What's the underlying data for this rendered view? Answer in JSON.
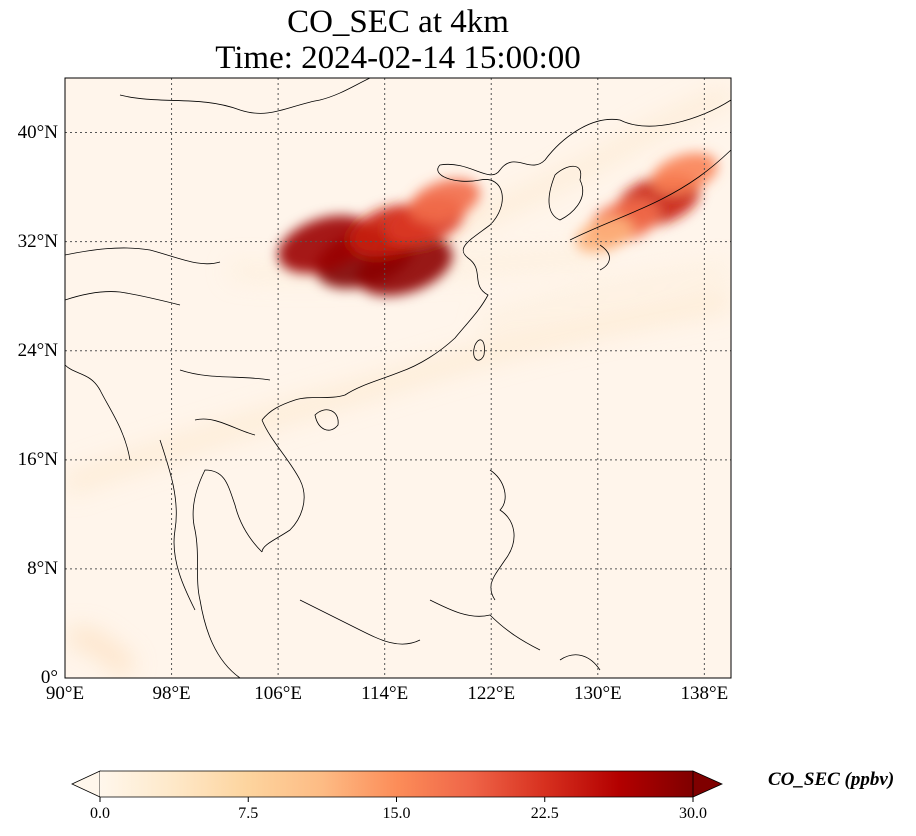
{
  "title": {
    "line1": "CO_SEC at 4km",
    "line2": "Time: 2024-02-14 15:00:00"
  },
  "map": {
    "extent_lon": [
      90,
      140
    ],
    "extent_lat": [
      0,
      44
    ],
    "lat_ticks": [
      {
        "value": 40,
        "label": "40°N"
      },
      {
        "value": 32,
        "label": "32°N"
      },
      {
        "value": 24,
        "label": "24°N"
      },
      {
        "value": 16,
        "label": "16°N"
      },
      {
        "value": 8,
        "label": "8°N"
      },
      {
        "value": 0,
        "label": "0°"
      }
    ],
    "lon_ticks": [
      {
        "value": 90,
        "label": "90°E"
      },
      {
        "value": 98,
        "label": "98°E"
      },
      {
        "value": 106,
        "label": "106°E"
      },
      {
        "value": 114,
        "label": "114°E"
      },
      {
        "value": 122,
        "label": "122°E"
      },
      {
        "value": 130,
        "label": "130°E"
      },
      {
        "value": 138,
        "label": "138°E"
      }
    ],
    "gridlines": true,
    "background_color": "#fff5eb",
    "plumes": [
      {
        "region": "central-east China",
        "lon": 112.5,
        "lat": 30.8,
        "value": 30
      },
      {
        "region": "central-east China",
        "lon": 109.5,
        "lat": 31.8,
        "value": 28
      },
      {
        "region": "central-east China",
        "lon": 115.5,
        "lat": 30.2,
        "value": 29
      },
      {
        "region": "central-east China",
        "lon": 114.5,
        "lat": 32.8,
        "value": 24
      },
      {
        "region": "central-east China",
        "lon": 117,
        "lat": 33.5,
        "value": 22
      },
      {
        "region": "central-east China",
        "lon": 118.5,
        "lat": 35,
        "value": 18
      },
      {
        "region": "southern Japan",
        "lon": 134.5,
        "lat": 35,
        "value": 24
      },
      {
        "region": "southern Japan",
        "lon": 132,
        "lat": 33.5,
        "value": 18
      },
      {
        "region": "southern Japan",
        "lon": 136.5,
        "lat": 37,
        "value": 16
      },
      {
        "region": "southern Japan",
        "lon": 130.5,
        "lat": 32.5,
        "value": 12
      }
    ]
  },
  "colorbar": {
    "title": "CO_SEC (ppbv)",
    "min": 0,
    "max": 30,
    "extend": "both",
    "colormap": "OrRd",
    "colors": [
      "#fff7ec",
      "#fee8c8",
      "#fdd49e",
      "#fdbb84",
      "#fc8d59",
      "#ef6548",
      "#d7301f",
      "#b30000",
      "#7f0000"
    ],
    "ticks": [
      {
        "value": 0,
        "label": "0.0"
      },
      {
        "value": 7.5,
        "label": "7.5"
      },
      {
        "value": 15,
        "label": "15.0"
      },
      {
        "value": 22.5,
        "label": "22.5"
      },
      {
        "value": 30,
        "label": "30.0"
      }
    ]
  }
}
